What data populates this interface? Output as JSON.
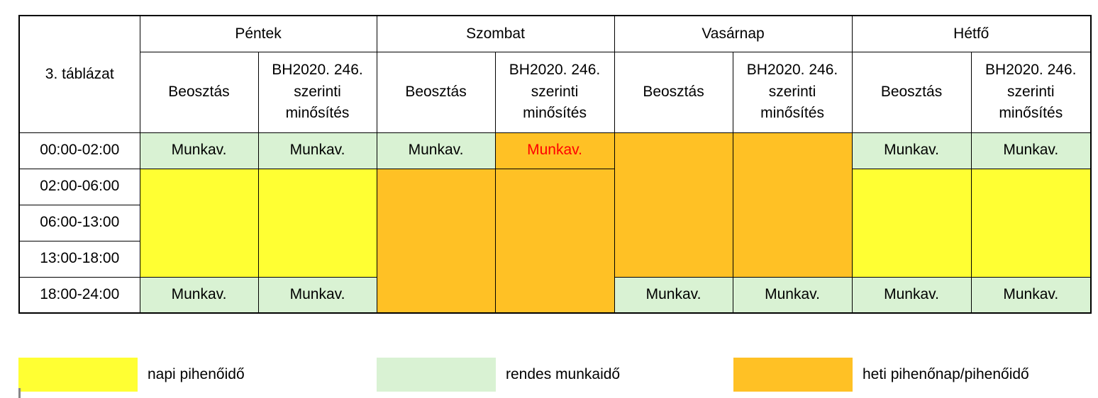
{
  "table": {
    "corner_label": "3. táblázat",
    "days": [
      "Péntek",
      "Szombat",
      "Vasárnap",
      "Hétfő"
    ],
    "sub_schedule": "Beosztás",
    "sub_rating": "BH2020. 246. szerinti minősítés",
    "times": [
      "00:00-02:00",
      "02:00-06:00",
      "06:00-13:00",
      "13:00-18:00",
      "18:00-24:00"
    ],
    "cell_work": "Munkav."
  },
  "legend": [
    {
      "label": "napi pihenőidő",
      "color": "#ffff33"
    },
    {
      "label": "rendes munkaidő",
      "color": "#d9f2d3"
    },
    {
      "label": "heti pihenőnap/pihenőidő",
      "color": "#ffc125"
    }
  ],
  "colors": {
    "green": "#d9f2d3",
    "yellow": "#ffff33",
    "orange": "#ffc125",
    "highlight_text": "#ff0000"
  }
}
